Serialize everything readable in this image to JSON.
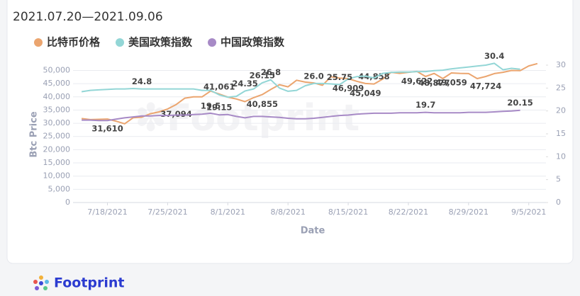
{
  "chart_data": {
    "type": "line",
    "subtitle": "2021.07.20—2021.09.06",
    "y_label": "Btc Price",
    "x_label": "Date",
    "brand": "Footprint",
    "legend": "top-left",
    "grid": true,
    "x": [
      "2021-07-15",
      "2021-07-16",
      "2021-07-17",
      "2021-07-18",
      "2021-07-19",
      "2021-07-20",
      "2021-07-21",
      "2021-07-22",
      "2021-07-23",
      "2021-07-24",
      "2021-07-25",
      "2021-07-26",
      "2021-07-27",
      "2021-07-28",
      "2021-07-29",
      "2021-07-30",
      "2021-07-31",
      "2021-08-01",
      "2021-08-02",
      "2021-08-03",
      "2021-08-04",
      "2021-08-05",
      "2021-08-06",
      "2021-08-07",
      "2021-08-08",
      "2021-08-09",
      "2021-08-10",
      "2021-08-11",
      "2021-08-12",
      "2021-08-13",
      "2021-08-14",
      "2021-08-15",
      "2021-08-16",
      "2021-08-17",
      "2021-08-18",
      "2021-08-19",
      "2021-08-20",
      "2021-08-21",
      "2021-08-22",
      "2021-08-23",
      "2021-08-24",
      "2021-08-25",
      "2021-08-26",
      "2021-08-27",
      "2021-08-28",
      "2021-08-29",
      "2021-08-30",
      "2021-08-31",
      "2021-09-01",
      "2021-09-02",
      "2021-09-03",
      "2021-09-04",
      "2021-09-05",
      "2021-09-06"
    ],
    "xlim": [
      "2021-07-14",
      "2021-09-07"
    ],
    "xticks": [
      {
        "value": "2021-07-18",
        "label": "7/18/2021"
      },
      {
        "value": "2021-07-25",
        "label": "7/25/2021"
      },
      {
        "value": "2021-08-01",
        "label": "8/1/2021"
      },
      {
        "value": "2021-08-08",
        "label": "8/8/2021"
      },
      {
        "value": "2021-08-15",
        "label": "8/15/2021"
      },
      {
        "value": "2021-08-22",
        "label": "8/22/2021"
      },
      {
        "value": "2021-08-29",
        "label": "8/29/2021"
      },
      {
        "value": "2021-09-05",
        "label": "9/5/2021"
      }
    ],
    "ylim": [
      0,
      52000
    ],
    "yticks": [
      0,
      {
        "value": 5000,
        "label": "5,000"
      },
      {
        "value": 10000,
        "label": "10,000"
      },
      {
        "value": 15000,
        "label": "15,000"
      },
      {
        "value": 20000,
        "label": "20,000"
      },
      {
        "value": 25000,
        "label": "25,000"
      },
      {
        "value": 30000,
        "label": "30,000"
      },
      {
        "value": 35000,
        "label": "35,000"
      },
      {
        "value": 40000,
        "label": "40,000"
      },
      {
        "value": 45000,
        "label": "45,000"
      },
      {
        "value": 50000,
        "label": "50,000"
      }
    ],
    "y2lim": [
      0,
      30
    ],
    "y2ticks": [
      0,
      5,
      10,
      15,
      20,
      25,
      30
    ],
    "series": [
      {
        "name": "比特币价格",
        "color": "#eba56f",
        "values": [
          31800,
          31400,
          31500,
          31610,
          30800,
          29800,
          32100,
          32300,
          33600,
          34300,
          35400,
          37094,
          39500,
          40000,
          40000,
          42200,
          41061,
          39900,
          39200,
          38200,
          39700,
          40855,
          42800,
          44600,
          43800,
          46300,
          45600,
          45269,
          44400,
          47600,
          47100,
          46909,
          45900,
          45049,
          44858,
          46700,
          49300,
          48900,
          49300,
          49622,
          47700,
          48877,
          46900,
          49059,
          48900,
          48800,
          46900,
          47724,
          48800,
          49300,
          50000,
          49900,
          51700,
          52600
        ],
        "value_labels": [
          null,
          null,
          null,
          "31,610",
          null,
          null,
          null,
          null,
          null,
          null,
          null,
          "37,094",
          null,
          null,
          null,
          null,
          "41,061",
          null,
          null,
          null,
          null,
          "40,855",
          null,
          null,
          null,
          null,
          null,
          null,
          null,
          null,
          null,
          "46,909",
          null,
          "45,049",
          "44,858",
          null,
          null,
          null,
          null,
          "49,622",
          null,
          "48,877",
          null,
          "49,059",
          null,
          null,
          null,
          "47,724",
          null,
          null,
          null,
          null,
          null,
          null
        ]
      },
      {
        "name": "美国政策指数",
        "color": "#93d6d6",
        "axis": "y2",
        "values": [
          24.2,
          24.5,
          24.6,
          24.7,
          24.8,
          24.8,
          24.9,
          24.8,
          24.8,
          24.8,
          24.8,
          24.8,
          24.8,
          24.8,
          24.5,
          24.5,
          23.5,
          23.0,
          23.2,
          24.35,
          24.8,
          26.15,
          26.8,
          25.0,
          24.3,
          24.5,
          25.5,
          26.0,
          26.0,
          25.9,
          25.75,
          27.0,
          27.5,
          27.6,
          27.2,
          28.2,
          28.4,
          28.5,
          28.5,
          28.6,
          28.6,
          28.8,
          28.9,
          29.2,
          29.4,
          29.6,
          29.8,
          30.0,
          30.4,
          29.0,
          29.3,
          29.1,
          null,
          null
        ],
        "value_labels": [
          null,
          null,
          null,
          null,
          null,
          null,
          null,
          "24.8",
          null,
          null,
          null,
          null,
          null,
          null,
          null,
          null,
          null,
          null,
          null,
          "24.35",
          null,
          "26.15",
          "26.8",
          null,
          null,
          null,
          null,
          "26.0",
          null,
          null,
          "25.75",
          null,
          null,
          null,
          null,
          null,
          null,
          null,
          null,
          null,
          null,
          null,
          null,
          null,
          null,
          null,
          null,
          null,
          "30.4",
          null,
          null,
          null,
          null,
          null
        ]
      },
      {
        "name": "中国政策指数",
        "color": "#a78ac6",
        "axis": "y2",
        "values": [
          18.0,
          18.0,
          17.9,
          17.9,
          18.2,
          18.5,
          18.7,
          18.9,
          18.9,
          19.0,
          19.0,
          19.1,
          19.1,
          19.2,
          19.3,
          19.5,
          19.15,
          19.2,
          18.8,
          18.5,
          18.8,
          18.8,
          18.7,
          18.6,
          18.4,
          18.3,
          18.3,
          18.4,
          18.6,
          18.8,
          19.0,
          19.1,
          19.3,
          19.4,
          19.5,
          19.5,
          19.5,
          19.6,
          19.6,
          19.6,
          19.7,
          19.6,
          19.6,
          19.6,
          19.6,
          19.7,
          19.7,
          19.7,
          19.8,
          19.9,
          20.0,
          20.15,
          null,
          null
        ],
        "value_labels": [
          null,
          null,
          null,
          null,
          null,
          null,
          null,
          null,
          null,
          null,
          null,
          null,
          null,
          null,
          null,
          "19.5",
          "19.15",
          null,
          null,
          null,
          null,
          null,
          null,
          null,
          null,
          null,
          null,
          null,
          null,
          null,
          null,
          null,
          null,
          null,
          null,
          null,
          null,
          null,
          null,
          null,
          "19.7",
          null,
          null,
          null,
          null,
          null,
          null,
          null,
          null,
          null,
          null,
          "20.15",
          null,
          null
        ]
      }
    ]
  }
}
